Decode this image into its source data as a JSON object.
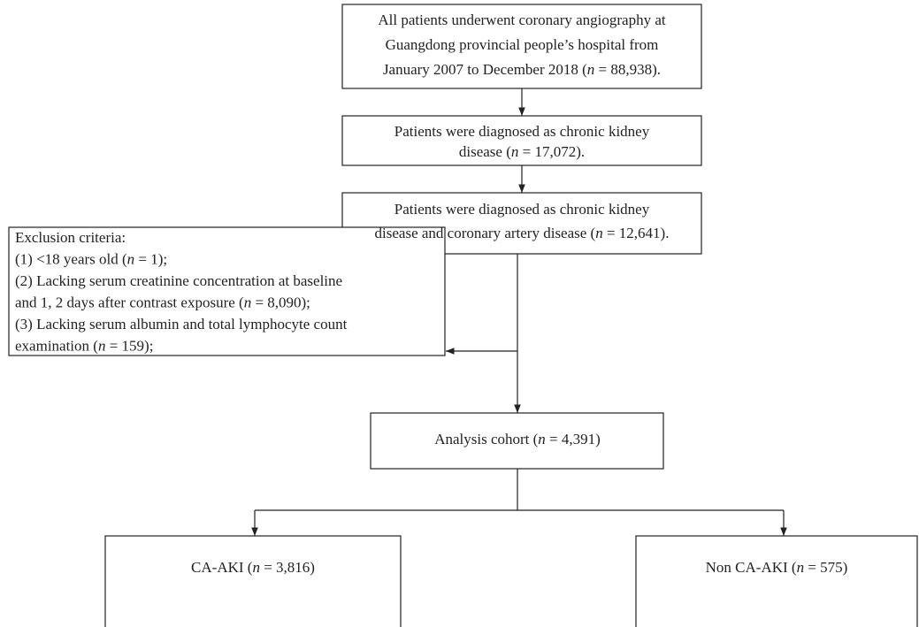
{
  "nodes": [
    {
      "lines": [
        [
          "All patients underwent coronary angiography at"
        ],
        [
          "Guangdong provincial people’s hospital from"
        ],
        [
          "January 2007 to December 2018 (",
          {
            "t": "n",
            "i": true
          },
          " = 88,938)."
        ]
      ]
    },
    {
      "lines": [
        [
          "Patients were diagnosed as chronic kidney"
        ],
        [
          "disease (",
          {
            "t": "n",
            "i": true
          },
          " = 17,072)."
        ]
      ]
    },
    {
      "lines": [
        [
          "Patients were diagnosed as chronic kidney"
        ],
        [
          "disease and coronary artery disease (",
          {
            "t": "n",
            "i": true
          },
          " = 12,641)."
        ]
      ]
    },
    {
      "lines": [
        [
          "Exclusion criteria:"
        ],
        [
          "(1) <18 years old (",
          {
            "t": "n",
            "i": true
          },
          " = 1);"
        ],
        [
          "(2) Lacking serum creatinine concentration at baseline"
        ],
        [
          "and 1, 2 days after contrast exposure (",
          {
            "t": "n",
            "i": true
          },
          " = 8,090);"
        ],
        [
          "(3) Lacking serum albumin and total lymphocyte count"
        ],
        [
          "examination (",
          {
            "t": "n",
            "i": true
          },
          " = 159);"
        ]
      ]
    },
    {
      "lines": [
        [
          "Analysis cohort (",
          {
            "t": "n",
            "i": true
          },
          " = 4,391)"
        ]
      ]
    },
    {
      "lines": [
        [
          "CA-AKI (",
          {
            "t": "n",
            "i": true
          },
          " = 3,816)"
        ]
      ]
    },
    {
      "lines": [
        [
          "Non CA-AKI (",
          {
            "t": "n",
            "i": true
          },
          " = 575)"
        ]
      ]
    }
  ]
}
